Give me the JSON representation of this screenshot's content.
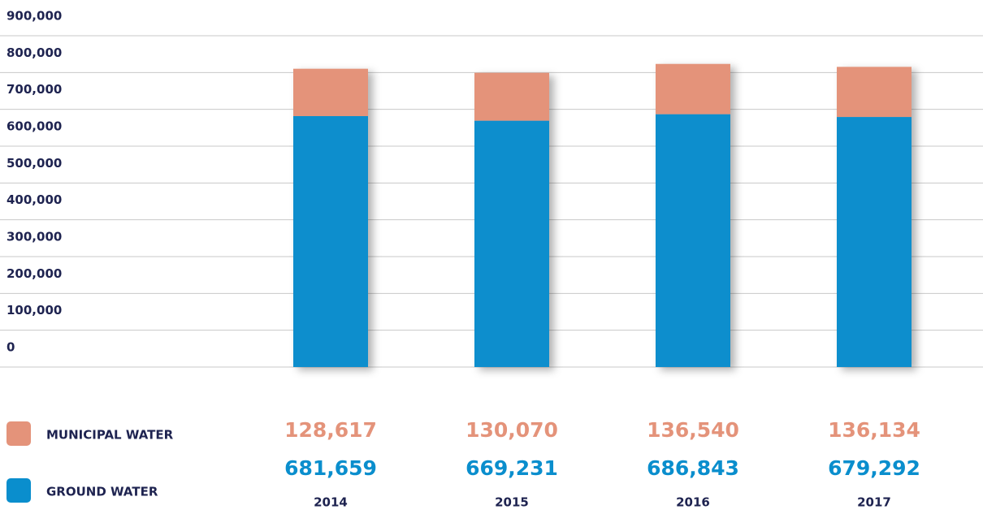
{
  "chart_data": {
    "type": "stacked-bar",
    "categories": [
      "2014",
      "2015",
      "2016",
      "2017"
    ],
    "series": [
      {
        "name": "GROUND WATER",
        "color": "#0a8ecd",
        "values": [
          681659,
          669231,
          686843,
          679292
        ],
        "value_labels": [
          "681,659",
          "669,231",
          "686,843",
          "679,292"
        ]
      },
      {
        "name": "MUNICIPAL WATER",
        "color": "#e4937a",
        "values": [
          128617,
          130070,
          136540,
          136134
        ],
        "value_labels": [
          "128,617",
          "130,070",
          "136,540",
          "136,134"
        ]
      }
    ],
    "ylim": [
      0,
      900000
    ],
    "yticks": [
      0,
      {
        "value": 100000,
        "label": "100,000"
      },
      {
        "value": 200000,
        "label": "200,000"
      },
      {
        "value": 300000,
        "label": "300,000"
      },
      {
        "value": 400000,
        "label": "400,000"
      },
      {
        "value": 500000,
        "label": "500,000"
      },
      {
        "value": 600000,
        "label": "600,000"
      },
      {
        "value": 700000,
        "label": "700,000"
      },
      {
        "value": 800000,
        "label": "800,000"
      },
      {
        "value": 900000,
        "label": "900,000"
      }
    ],
    "grid": true
  }
}
